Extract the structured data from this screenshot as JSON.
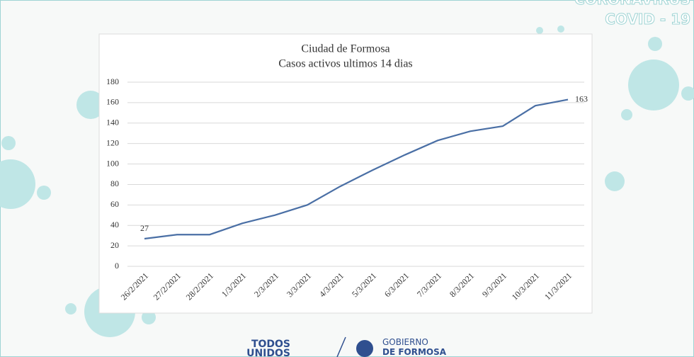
{
  "header": {
    "brand": "CORONAVIRUS",
    "tag": "COVID - 19"
  },
  "footer": {
    "left": [
      "TODOS",
      "UNIDOS"
    ],
    "right": [
      "GOBIERNO",
      "DE FORMOSA"
    ]
  },
  "chart_data": {
    "type": "line",
    "title": "Ciudad de Formosa",
    "subtitle": "Casos activos ultimos  14 dias",
    "categories": [
      "26/2/2021",
      "27/2/2021",
      "28/2/2021",
      "1/3/2021",
      "2/3/2021",
      "3/3/2021",
      "4/3/2021",
      "5/3/2021",
      "6/3/2021",
      "7/3/2021",
      "8/3/2021",
      "9/3/2021",
      "10/3/2021",
      "11/3/2021"
    ],
    "series": [
      {
        "name": "Casos activos",
        "color": "#4a6fa5",
        "values": [
          27,
          31,
          31,
          42,
          50,
          60,
          78,
          94,
          109,
          123,
          132,
          137,
          157,
          163
        ]
      }
    ],
    "data_labels": "first-last",
    "ylim": [
      0,
      180
    ],
    "yticks": [
      0,
      20,
      40,
      60,
      80,
      100,
      120,
      140,
      160,
      180
    ],
    "grid": true
  }
}
